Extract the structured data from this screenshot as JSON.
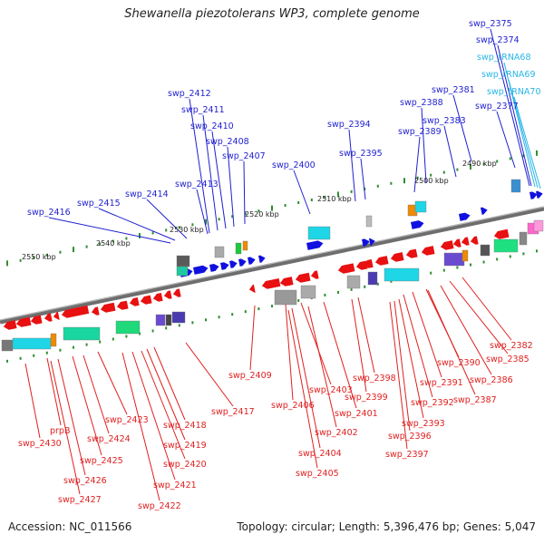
{
  "title": "Shewanella piezotolerans WP3, complete genome",
  "footer": {
    "accession": "Accession: NC_011566",
    "summary": "Topology: circular; Length: 5,396,476 bp; Genes: 5,047"
  },
  "colors": {
    "forward_label": "#1f1fd0",
    "reverse_label": "#e02020",
    "trna_label": "#29b6e6",
    "backbone": "#7a7a7a",
    "tick": "#2f8f2f"
  },
  "kbp_labels": [
    "2490 kbp",
    "2500 kbp",
    "2510 kbp",
    "2520 kbp",
    "2530 kbp",
    "2540 kbp",
    "2550 kbp"
  ],
  "top_labels": [
    {
      "text": "swp_2375",
      "kind": "fwd"
    },
    {
      "text": "swp_2374",
      "kind": "fwd"
    },
    {
      "text": "swp_tRNA68",
      "kind": "trna"
    },
    {
      "text": "swp_tRNA69",
      "kind": "trna"
    },
    {
      "text": "swp_tRNA70",
      "kind": "trna"
    },
    {
      "text": "swp_2381",
      "kind": "fwd"
    },
    {
      "text": "swp_2377",
      "kind": "fwd"
    },
    {
      "text": "swp_2388",
      "kind": "fwd"
    },
    {
      "text": "swp_2383",
      "kind": "fwd"
    },
    {
      "text": "swp_2412",
      "kind": "fwd"
    },
    {
      "text": "swp_2411",
      "kind": "fwd"
    },
    {
      "text": "swp_2394",
      "kind": "fwd"
    },
    {
      "text": "swp_2389",
      "kind": "fwd"
    },
    {
      "text": "swp_2410",
      "kind": "fwd"
    },
    {
      "text": "swp_2408",
      "kind": "fwd"
    },
    {
      "text": "swp_2395",
      "kind": "fwd"
    },
    {
      "text": "swp_2407",
      "kind": "fwd"
    },
    {
      "text": "swp_2400",
      "kind": "fwd"
    },
    {
      "text": "swp_2413",
      "kind": "fwd"
    },
    {
      "text": "swp_2414",
      "kind": "fwd"
    },
    {
      "text": "swp_2415",
      "kind": "fwd"
    },
    {
      "text": "swp_2416",
      "kind": "fwd"
    }
  ],
  "bottom_labels": [
    {
      "text": "swp_2382",
      "kind": "rev"
    },
    {
      "text": "swp_2385",
      "kind": "rev"
    },
    {
      "text": "swp_2390",
      "kind": "rev"
    },
    {
      "text": "swp_2386",
      "kind": "rev"
    },
    {
      "text": "swp_2391",
      "kind": "rev"
    },
    {
      "text": "swp_2387",
      "kind": "rev"
    },
    {
      "text": "swp_2398",
      "kind": "rev"
    },
    {
      "text": "swp_2392",
      "kind": "rev"
    },
    {
      "text": "swp_2403",
      "kind": "rev"
    },
    {
      "text": "swp_2409",
      "kind": "rev"
    },
    {
      "text": "swp_2399",
      "kind": "rev"
    },
    {
      "text": "swp_2406",
      "kind": "rev"
    },
    {
      "text": "swp_2401",
      "kind": "rev"
    },
    {
      "text": "swp_2393",
      "kind": "rev"
    },
    {
      "text": "swp_2417",
      "kind": "rev"
    },
    {
      "text": "swp_2402",
      "kind": "rev"
    },
    {
      "text": "swp_2396",
      "kind": "rev"
    },
    {
      "text": "swp_2423",
      "kind": "rev"
    },
    {
      "text": "swp_2418",
      "kind": "rev"
    },
    {
      "text": "swp_2397",
      "kind": "rev"
    },
    {
      "text": "prpB",
      "kind": "rev"
    },
    {
      "text": "swp_2404",
      "kind": "rev"
    },
    {
      "text": "swp_2424",
      "kind": "rev"
    },
    {
      "text": "swp_2430",
      "kind": "rev"
    },
    {
      "text": "swp_2419",
      "kind": "rev"
    },
    {
      "text": "swp_2425",
      "kind": "rev"
    },
    {
      "text": "swp_2420",
      "kind": "rev"
    },
    {
      "text": "swp_2405",
      "kind": "rev"
    },
    {
      "text": "swp_2426",
      "kind": "rev"
    },
    {
      "text": "swp_2421",
      "kind": "rev"
    },
    {
      "text": "swp_2427",
      "kind": "rev"
    },
    {
      "text": "swp_2422",
      "kind": "rev"
    }
  ]
}
